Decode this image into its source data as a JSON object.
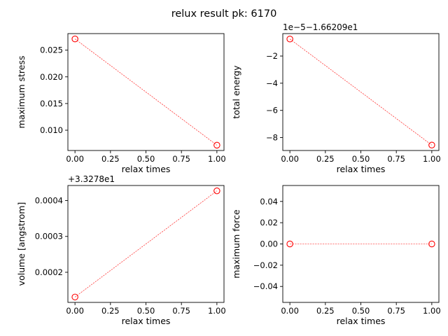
{
  "figure": {
    "title": "relux result pk: 6170"
  },
  "chart_data": [
    {
      "type": "line",
      "panel": "top-left",
      "title": "",
      "xlabel": "relax times",
      "ylabel": "maximum stress",
      "offset_text": "",
      "x": [
        0,
        1
      ],
      "y": [
        0.0271,
        0.0072
      ],
      "xlim": [
        -0.05,
        1.05
      ],
      "ylim": [
        0.0062,
        0.0281
      ],
      "xticks": [
        0.0,
        0.25,
        0.5,
        0.75,
        1.0
      ],
      "xticklabels": [
        "0.00",
        "0.25",
        "0.50",
        "0.75",
        "1.00"
      ],
      "yticks": [
        0.01,
        0.015,
        0.02,
        0.025
      ],
      "yticklabels": [
        "0.010",
        "0.015",
        "0.020",
        "0.025"
      ],
      "marker": "open-circle",
      "line_style": "dashed",
      "color": "#ff0000"
    },
    {
      "type": "line",
      "panel": "top-right",
      "title": "",
      "xlabel": "relax times",
      "ylabel": "total energy",
      "offset_text": "1e−5−1.66209e1",
      "x": [
        0,
        1
      ],
      "y": [
        -0.75,
        -8.55
      ],
      "xlim": [
        -0.05,
        1.05
      ],
      "ylim": [
        -8.95,
        -0.35
      ],
      "xticks": [
        0.0,
        0.25,
        0.5,
        0.75,
        1.0
      ],
      "xticklabels": [
        "0.00",
        "0.25",
        "0.50",
        "0.75",
        "1.00"
      ],
      "yticks": [
        -8,
        -6,
        -4,
        -2
      ],
      "yticklabels": [
        "−8",
        "−6",
        "−4",
        "−2"
      ],
      "marker": "open-circle",
      "line_style": "dashed",
      "color": "#ff0000"
    },
    {
      "type": "line",
      "panel": "bottom-left",
      "title": "",
      "xlabel": "relax times",
      "ylabel": "volume [angstrom]",
      "offset_text": "+3.3278e1",
      "x": [
        0,
        1
      ],
      "y": [
        0.000131,
        0.000427
      ],
      "xlim": [
        -0.05,
        1.05
      ],
      "ylim": [
        0.000116,
        0.000442
      ],
      "xticks": [
        0.0,
        0.25,
        0.5,
        0.75,
        1.0
      ],
      "xticklabels": [
        "0.00",
        "0.25",
        "0.50",
        "0.75",
        "1.00"
      ],
      "yticks": [
        0.0002,
        0.0003,
        0.0004
      ],
      "yticklabels": [
        "0.0002",
        "0.0003",
        "0.0004"
      ],
      "marker": "open-circle",
      "line_style": "dashed",
      "color": "#ff0000"
    },
    {
      "type": "line",
      "panel": "bottom-right",
      "title": "",
      "xlabel": "relax times",
      "ylabel": "maximum force",
      "offset_text": "",
      "x": [
        0,
        1
      ],
      "y": [
        0.0,
        0.0
      ],
      "xlim": [
        -0.05,
        1.05
      ],
      "ylim": [
        -0.055,
        0.055
      ],
      "xticks": [
        0.0,
        0.25,
        0.5,
        0.75,
        1.0
      ],
      "xticklabels": [
        "0.00",
        "0.25",
        "0.50",
        "0.75",
        "1.00"
      ],
      "yticks": [
        -0.04,
        -0.02,
        0.0,
        0.02,
        0.04
      ],
      "yticklabels": [
        "−0.04",
        "−0.02",
        "0.00",
        "0.02",
        "0.04"
      ],
      "marker": "open-circle",
      "line_style": "dashed",
      "color": "#ff0000"
    }
  ]
}
